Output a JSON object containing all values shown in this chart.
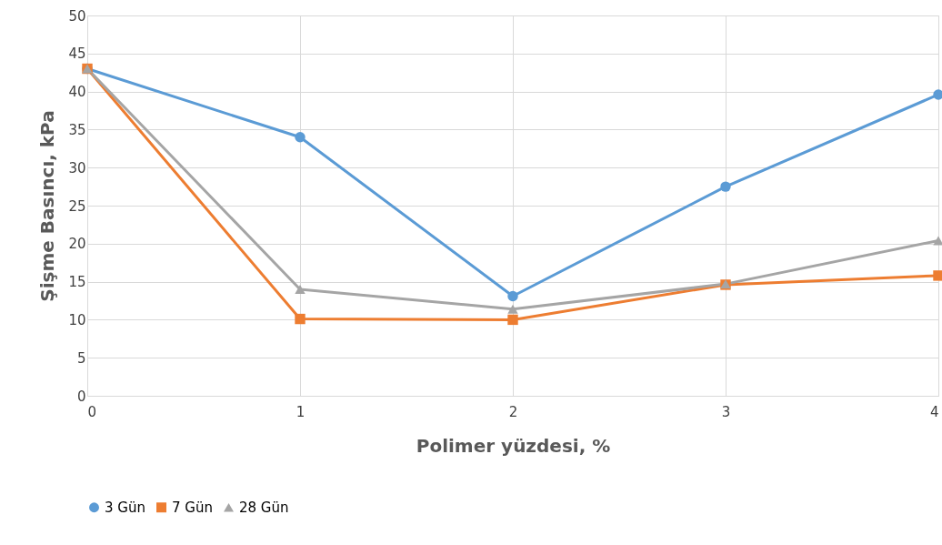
{
  "chart_data": {
    "type": "line",
    "xlabel": "Polimer yüzdesi, %",
    "ylabel": "Şişme Basıncı, kPa",
    "x": [
      0,
      1,
      2,
      3,
      4
    ],
    "xlim": [
      0,
      4
    ],
    "xticks": [
      0,
      1,
      2,
      3,
      4
    ],
    "ylim": [
      0,
      50
    ],
    "yticks": [
      0,
      5,
      10,
      15,
      20,
      25,
      30,
      35,
      40,
      45,
      50
    ],
    "grid": true,
    "legend": "bottom",
    "series": [
      {
        "name": "3 Gün",
        "color": "#5b9bd5",
        "marker": "circle",
        "values": [
          43,
          34,
          13.1,
          27.5,
          39.6
        ]
      },
      {
        "name": "7 Gün",
        "color": "#ed7d31",
        "marker": "square",
        "values": [
          43,
          10.1,
          10,
          14.6,
          15.8
        ]
      },
      {
        "name": "28 Gün",
        "color": "#a5a5a5",
        "marker": "triangle",
        "values": [
          43,
          14,
          11.4,
          14.7,
          20.4
        ]
      }
    ]
  }
}
